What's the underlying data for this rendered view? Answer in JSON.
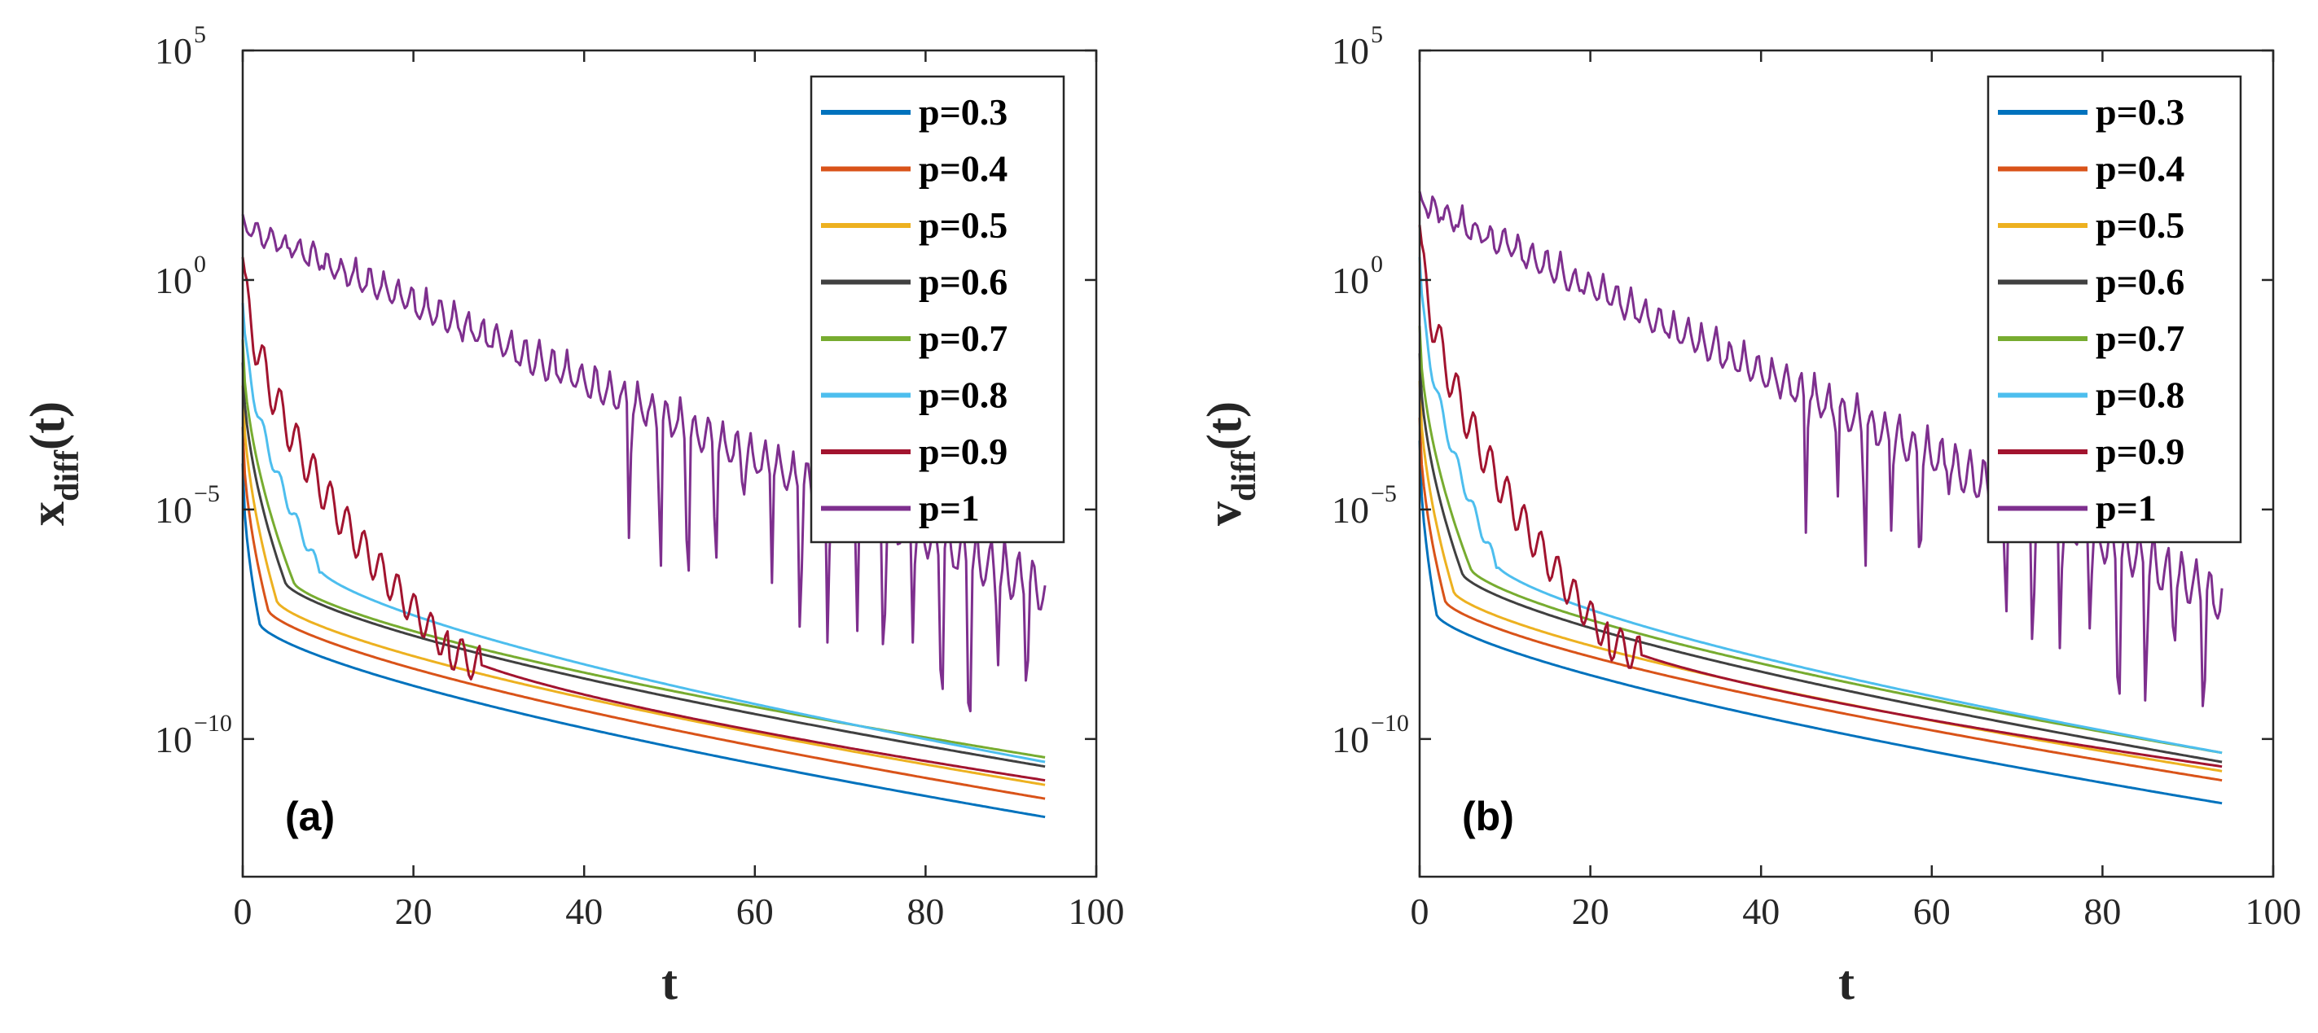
{
  "chart_data": [
    {
      "type": "line",
      "panel_label": "(a)",
      "ylabel": "x",
      "ylabel_sub": "diff",
      "ylabel_suffix": "(t)",
      "xlabel": "t",
      "xlim": [
        0,
        100
      ],
      "ylim_log10": [
        -13,
        5
      ],
      "x_ticks": [
        "0",
        "20",
        "40",
        "60",
        "80",
        "100"
      ],
      "y_ticks": [
        {
          "base": "10",
          "exp": "5"
        },
        {
          "base": "10",
          "exp": "0"
        },
        {
          "base": "10",
          "exp": "−5"
        },
        {
          "base": "10",
          "exp": "−10"
        }
      ],
      "legend_position": "top-right",
      "t_end": 94,
      "series": [
        {
          "name": "p=0.3",
          "color": "#0072BD",
          "start_log": -4,
          "end_log": -11.7,
          "knee_t": 2,
          "knee_log": -7.5,
          "wiggle": 0
        },
        {
          "name": "p=0.4",
          "color": "#D95319",
          "start_log": -3.2,
          "end_log": -11.3,
          "knee_t": 3,
          "knee_log": -7.2,
          "wiggle": 0
        },
        {
          "name": "p=0.5",
          "color": "#EDB120",
          "start_log": -2.3,
          "end_log": -11.0,
          "knee_t": 4,
          "knee_log": -7.0,
          "wiggle": 0
        },
        {
          "name": "p=0.6",
          "color": "#404040",
          "start_log": -1.8,
          "end_log": -10.6,
          "knee_t": 5,
          "knee_log": -6.6,
          "wiggle": 0
        },
        {
          "name": "p=0.7",
          "color": "#77AC30",
          "start_log": -1.3,
          "end_log": -10.4,
          "knee_t": 6,
          "knee_log": -6.6,
          "wiggle": 0
        },
        {
          "name": "p=0.8",
          "color": "#4DBEEE",
          "start_log": -0.5,
          "end_log": -10.5,
          "knee_t": 9,
          "knee_log": -6.3,
          "wiggle": 0.4
        },
        {
          "name": "p=0.9",
          "color": "#A2142F",
          "start_log": 0.5,
          "end_log": -10.9,
          "knee_t": 24,
          "knee_log": -8.0,
          "wiggle": 1.0
        },
        {
          "name": "p=1",
          "color": "#7E2F8E",
          "start_log": 1.5,
          "end_log": -6.0,
          "knee_t": 94,
          "knee_log": -6.0,
          "wiggle": 2.5
        }
      ]
    },
    {
      "type": "line",
      "panel_label": "(b)",
      "ylabel": "v",
      "ylabel_sub": "diff",
      "ylabel_suffix": "(t)",
      "xlabel": "t",
      "xlim": [
        0,
        100
      ],
      "ylim_log10": [
        -13,
        5
      ],
      "x_ticks": [
        "0",
        "20",
        "40",
        "60",
        "80",
        "100"
      ],
      "y_ticks": [
        {
          "base": "10",
          "exp": "5"
        },
        {
          "base": "10",
          "exp": "0"
        },
        {
          "base": "10",
          "exp": "−5"
        },
        {
          "base": "10",
          "exp": "−10"
        }
      ],
      "legend_position": "top-right",
      "t_end": 94,
      "series": [
        {
          "name": "p=0.3",
          "color": "#0072BD",
          "start_log": -3.5,
          "end_log": -11.4,
          "knee_t": 2,
          "knee_log": -7.3,
          "wiggle": 0
        },
        {
          "name": "p=0.4",
          "color": "#D95319",
          "start_log": -3.0,
          "end_log": -10.9,
          "knee_t": 3,
          "knee_log": -7.0,
          "wiggle": 0
        },
        {
          "name": "p=0.5",
          "color": "#EDB120",
          "start_log": -2.2,
          "end_log": -10.7,
          "knee_t": 4,
          "knee_log": -6.8,
          "wiggle": 0
        },
        {
          "name": "p=0.6",
          "color": "#404040",
          "start_log": -1.6,
          "end_log": -10.5,
          "knee_t": 5,
          "knee_log": -6.4,
          "wiggle": 0
        },
        {
          "name": "p=0.7",
          "color": "#77AC30",
          "start_log": -1.0,
          "end_log": -10.3,
          "knee_t": 6,
          "knee_log": -6.3,
          "wiggle": 0
        },
        {
          "name": "p=0.8",
          "color": "#4DBEEE",
          "start_log": 0.5,
          "end_log": -10.3,
          "knee_t": 9,
          "knee_log": -6.2,
          "wiggle": 0.4
        },
        {
          "name": "p=0.9",
          "color": "#A2142F",
          "start_log": 1.2,
          "end_log": -10.6,
          "knee_t": 22,
          "knee_log": -7.8,
          "wiggle": 1.0
        },
        {
          "name": "p=1",
          "color": "#7E2F8E",
          "start_log": 2.0,
          "end_log": -6.2,
          "knee_t": 94,
          "knee_log": -6.2,
          "wiggle": 2.5
        }
      ]
    }
  ]
}
